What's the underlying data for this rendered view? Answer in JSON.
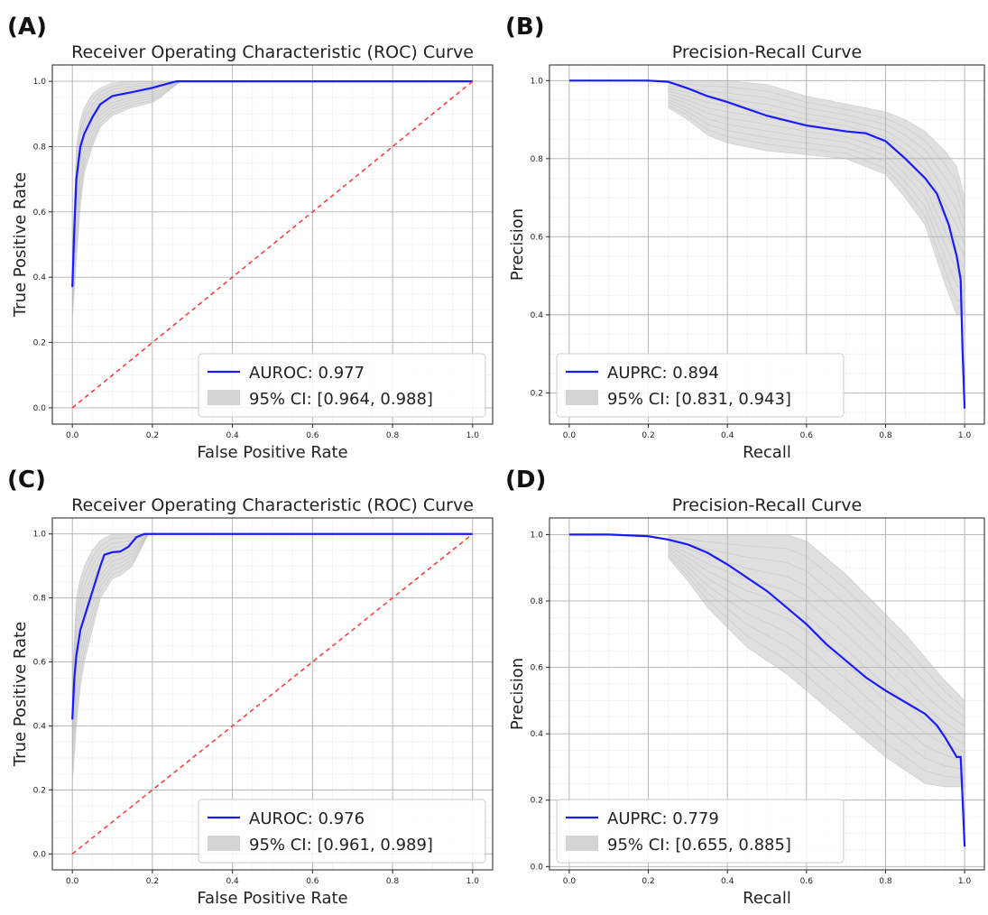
{
  "panels": [
    {
      "letter": "(A)",
      "chart_data": {
        "type": "line",
        "title": "Receiver Operating Characteristic (ROC) Curve",
        "xlabel": "False Positive Rate",
        "ylabel": "True Positive Rate",
        "xlim": [
          -0.05,
          1.05
        ],
        "ylim": [
          -0.05,
          1.05
        ],
        "xticks": [
          "0.0",
          "0.2",
          "0.4",
          "0.6",
          "0.8",
          "1.0"
        ],
        "yticks": [
          "0.0",
          "0.2",
          "0.4",
          "0.6",
          "0.8",
          "1.0"
        ],
        "grid": true,
        "legend_position": "lower-right",
        "series": [
          {
            "name": "AUROC: 0.977",
            "color": "#1a1aff",
            "x": [
              0,
              0.005,
              0.01,
              0.02,
              0.03,
              0.05,
              0.07,
              0.1,
              0.15,
              0.2,
              0.23,
              0.26,
              0.3,
              0.5,
              0.8,
              1.0
            ],
            "y": [
              0.37,
              0.55,
              0.7,
              0.8,
              0.84,
              0.89,
              0.93,
              0.955,
              0.967,
              0.98,
              0.99,
              1.0,
              1.0,
              1.0,
              1.0,
              1.0
            ]
          },
          {
            "name": "",
            "color": "#ff3333",
            "style": "dashed",
            "x": [
              0,
              1
            ],
            "y": [
              0,
              1
            ]
          }
        ],
        "ci_band": {
          "name": "95% CI: [0.964, 0.988]",
          "color": "#d4d4d4",
          "x": [
            0,
            0.01,
            0.02,
            0.03,
            0.05,
            0.07,
            0.1,
            0.15,
            0.2,
            0.22,
            0.25,
            0.27
          ],
          "lower": [
            0.27,
            0.45,
            0.62,
            0.72,
            0.8,
            0.86,
            0.895,
            0.92,
            0.935,
            0.95,
            0.98,
            1.0
          ],
          "upper": [
            0.47,
            0.8,
            0.88,
            0.92,
            0.96,
            0.98,
            0.995,
            1.0,
            1.0,
            1.0,
            1.0,
            1.0
          ]
        }
      }
    },
    {
      "letter": "(B)",
      "chart_data": {
        "type": "line",
        "title": "Precision-Recall Curve",
        "xlabel": "Recall",
        "ylabel": "Precision",
        "xlim": [
          -0.05,
          1.05
        ],
        "ylim": [
          0.12,
          1.04
        ],
        "xticks": [
          "0.0",
          "0.2",
          "0.4",
          "0.6",
          "0.8",
          "1.0"
        ],
        "yticks": [
          "0.2",
          "0.4",
          "0.6",
          "0.8",
          "1.0"
        ],
        "grid": true,
        "legend_position": "lower-left",
        "series": [
          {
            "name": "AUPRC: 0.894",
            "color": "#1a1aff",
            "x": [
              0,
              0.1,
              0.2,
              0.25,
              0.3,
              0.35,
              0.4,
              0.5,
              0.6,
              0.7,
              0.75,
              0.8,
              0.85,
              0.9,
              0.93,
              0.96,
              0.98,
              0.99,
              0.995,
              1.0
            ],
            "y": [
              1.0,
              1.0,
              1.0,
              0.997,
              0.98,
              0.96,
              0.945,
              0.91,
              0.885,
              0.87,
              0.865,
              0.845,
              0.8,
              0.75,
              0.71,
              0.63,
              0.55,
              0.49,
              0.3,
              0.16
            ]
          },
          {
            "name": "",
            "color": "#ff3333",
            "style": "dashed",
            "x": [],
            "y": []
          }
        ],
        "ci_band": {
          "name": "95% CI: [0.831, 0.943]",
          "color": "#d4d4d4",
          "x": [
            0.25,
            0.3,
            0.35,
            0.4,
            0.5,
            0.6,
            0.7,
            0.8,
            0.85,
            0.9,
            0.95,
            0.98,
            1.0
          ],
          "lower": [
            0.93,
            0.9,
            0.86,
            0.84,
            0.82,
            0.81,
            0.8,
            0.76,
            0.7,
            0.63,
            0.48,
            0.4,
            0.4
          ],
          "upper": [
            1.0,
            1.0,
            1.0,
            1.0,
            0.99,
            0.96,
            0.94,
            0.92,
            0.9,
            0.87,
            0.82,
            0.78,
            0.7
          ]
        }
      }
    },
    {
      "letter": "(C)",
      "chart_data": {
        "type": "line",
        "title": "Receiver Operating Characteristic (ROC) Curve",
        "xlabel": "False Positive Rate",
        "ylabel": "True Positive Rate",
        "xlim": [
          -0.05,
          1.05
        ],
        "ylim": [
          -0.05,
          1.05
        ],
        "xticks": [
          "0.0",
          "0.2",
          "0.4",
          "0.6",
          "0.8",
          "1.0"
        ],
        "yticks": [
          "0.0",
          "0.2",
          "0.4",
          "0.6",
          "0.8",
          "1.0"
        ],
        "grid": true,
        "legend_position": "lower-right",
        "series": [
          {
            "name": "AUROC: 0.976",
            "color": "#1a1aff",
            "x": [
              0,
              0.005,
              0.01,
              0.02,
              0.03,
              0.05,
              0.07,
              0.08,
              0.1,
              0.12,
              0.14,
              0.16,
              0.18,
              0.2,
              0.5,
              1.0
            ],
            "y": [
              0.42,
              0.55,
              0.62,
              0.7,
              0.74,
              0.82,
              0.9,
              0.935,
              0.943,
              0.945,
              0.96,
              0.99,
              1.0,
              1.0,
              1.0,
              1.0
            ]
          },
          {
            "name": "",
            "color": "#ff3333",
            "style": "dashed",
            "x": [
              0,
              1
            ],
            "y": [
              0,
              1
            ]
          }
        ],
        "ci_band": {
          "name": "95% CI: [0.961, 0.989]",
          "color": "#d4d4d4",
          "x": [
            0,
            0.01,
            0.02,
            0.03,
            0.05,
            0.07,
            0.1,
            0.12,
            0.15,
            0.17,
            0.19
          ],
          "lower": [
            0.22,
            0.4,
            0.52,
            0.6,
            0.7,
            0.8,
            0.86,
            0.87,
            0.9,
            0.95,
            1.0
          ],
          "upper": [
            0.55,
            0.8,
            0.86,
            0.9,
            0.95,
            0.98,
            1.0,
            1.0,
            1.0,
            1.0,
            1.0
          ]
        }
      }
    },
    {
      "letter": "(D)",
      "chart_data": {
        "type": "line",
        "title": "Precision-Recall Curve",
        "xlabel": "Recall",
        "ylabel": "Precision",
        "xlim": [
          -0.05,
          1.05
        ],
        "ylim": [
          -0.01,
          1.05
        ],
        "xticks": [
          "0.0",
          "0.2",
          "0.4",
          "0.6",
          "0.8",
          "1.0"
        ],
        "yticks": [
          "0.0",
          "0.2",
          "0.4",
          "0.6",
          "0.8",
          "1.0"
        ],
        "grid": true,
        "legend_position": "lower-left",
        "series": [
          {
            "name": "AUPRC: 0.779",
            "color": "#1a1aff",
            "x": [
              0,
              0.1,
              0.2,
              0.25,
              0.3,
              0.35,
              0.4,
              0.45,
              0.5,
              0.55,
              0.6,
              0.65,
              0.7,
              0.75,
              0.8,
              0.85,
              0.9,
              0.93,
              0.95,
              0.97,
              0.98,
              0.99,
              0.995,
              1.0
            ],
            "y": [
              1.0,
              1.0,
              0.995,
              0.985,
              0.97,
              0.945,
              0.91,
              0.87,
              0.83,
              0.78,
              0.73,
              0.67,
              0.62,
              0.57,
              0.53,
              0.495,
              0.46,
              0.425,
              0.39,
              0.35,
              0.33,
              0.33,
              0.2,
              0.06
            ]
          },
          {
            "name": "",
            "color": "#ff3333",
            "style": "dashed",
            "x": [],
            "y": []
          }
        ],
        "ci_band": {
          "name": "95% CI: [0.655, 0.885]",
          "color": "#d4d4d4",
          "x": [
            0.25,
            0.3,
            0.35,
            0.4,
            0.45,
            0.5,
            0.55,
            0.6,
            0.65,
            0.7,
            0.75,
            0.8,
            0.85,
            0.9,
            0.95,
            1.0
          ],
          "lower": [
            0.93,
            0.86,
            0.78,
            0.72,
            0.66,
            0.62,
            0.58,
            0.53,
            0.48,
            0.43,
            0.38,
            0.33,
            0.29,
            0.25,
            0.24,
            0.24
          ],
          "upper": [
            1.0,
            1.0,
            1.0,
            1.0,
            1.0,
            1.0,
            1.0,
            0.98,
            0.93,
            0.88,
            0.82,
            0.76,
            0.7,
            0.63,
            0.56,
            0.5
          ]
        }
      }
    }
  ]
}
